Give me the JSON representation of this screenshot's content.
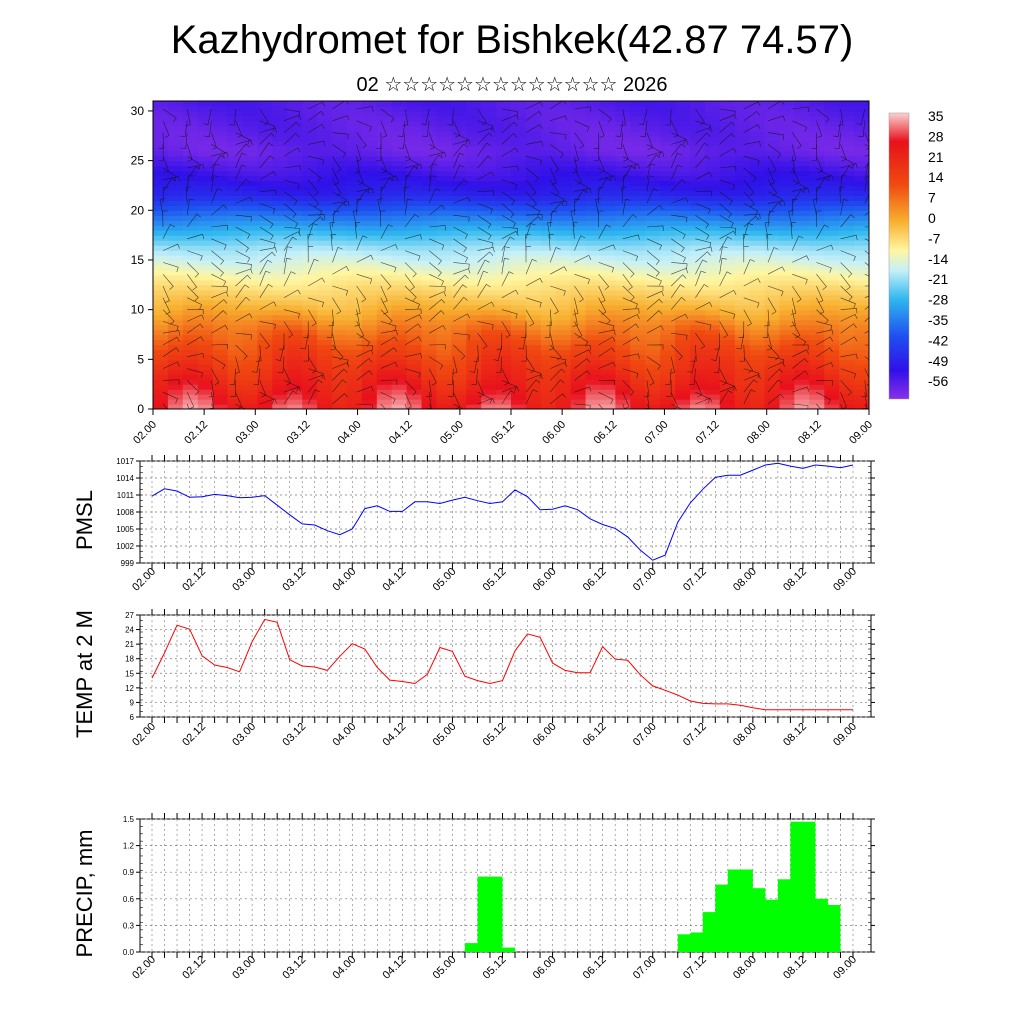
{
  "title": "Kazhydromet for Bishkek(42.87 74.57)",
  "subtitle": {
    "day": "02",
    "month_stars": "☆☆☆☆☆☆☆☆☆☆☆☆☆",
    "year": "2026"
  },
  "time_labels": [
    "02.00",
    "02.12",
    "03.00",
    "03.12",
    "04.00",
    "04.12",
    "05.00",
    "05.12",
    "06.00",
    "06.12",
    "07.00",
    "07.12",
    "08.00",
    "08.12",
    "09.00"
  ],
  "colors": {
    "pmsl_line": "#0000ff",
    "temp_line": "#ff0000",
    "precip_bar": "#00ff00"
  },
  "chart_data": [
    {
      "type": "heatmap",
      "name": "cross-section",
      "ylabel_ticks": [
        "0",
        "5",
        "10",
        "15",
        "20",
        "25",
        "30"
      ],
      "ylim": [
        0,
        31
      ],
      "colorbar_labels": [
        "35",
        "28",
        "21",
        "14",
        "7",
        "0",
        "-7",
        "-14",
        "-21",
        "-28",
        "-35",
        "-42",
        "-49",
        "-56"
      ],
      "colorbar_range": [
        -60,
        39
      ],
      "profile_levels": [
        0,
        4,
        8,
        12,
        16,
        19,
        21.5,
        23,
        26,
        31
      ],
      "profile_values": [
        30,
        20,
        10,
        -2,
        -14,
        -32,
        -48,
        -52,
        -57,
        -55
      ]
    },
    {
      "type": "line",
      "name": "PMSL",
      "ylabel": "PMSL",
      "y_ticks": [
        "999",
        "1002",
        "1005",
        "1008",
        "1011",
        "1014",
        "1017"
      ],
      "ylim": [
        999,
        1017
      ],
      "x": [
        0,
        1,
        2,
        3,
        4,
        5,
        6,
        7,
        8,
        9,
        10,
        11,
        12,
        13,
        14,
        15,
        16,
        17,
        18,
        19,
        20,
        21,
        22,
        23,
        24,
        25,
        26,
        27,
        28,
        29,
        30,
        31,
        32,
        33,
        34,
        35,
        36,
        37,
        38,
        39,
        40,
        41,
        42,
        43,
        44,
        45,
        46,
        47,
        48,
        49,
        50,
        51,
        52,
        53,
        54,
        55,
        56
      ],
      "values": [
        1010.8,
        1012.1,
        1011.7,
        1010.6,
        1010.7,
        1011.1,
        1010.9,
        1010.5,
        1010.6,
        1010.9,
        1009.2,
        1007.5,
        1005.9,
        1005.7,
        1004.7,
        1004.0,
        1005.0,
        1008.6,
        1009.1,
        1008.1,
        1008.1,
        1009.8,
        1009.8,
        1009.5,
        1010.1,
        1010.6,
        1010.0,
        1009.5,
        1009.8,
        1011.9,
        1010.7,
        1008.4,
        1008.5,
        1009.1,
        1008.4,
        1006.8,
        1005.8,
        1005.1,
        1003.6,
        1001.3,
        999.5,
        1000.4,
        1006.2,
        1009.6,
        1012.0,
        1014.1,
        1014.5,
        1014.5,
        1015.4,
        1016.3,
        1016.6,
        1016.1,
        1015.7,
        1016.3,
        1016.1,
        1015.8,
        1016.3
      ]
    },
    {
      "type": "line",
      "name": "TEMP at 2 M",
      "ylabel": "TEMP at 2 M",
      "y_ticks": [
        "6",
        "9",
        "12",
        "15",
        "18",
        "21",
        "24",
        "27"
      ],
      "ylim": [
        6,
        27
      ],
      "x": [
        0,
        1,
        2,
        3,
        4,
        5,
        6,
        7,
        8,
        9,
        10,
        11,
        12,
        13,
        14,
        15,
        16,
        17,
        18,
        19,
        20,
        21,
        22,
        23,
        24,
        25,
        26,
        27,
        28,
        29,
        30,
        31,
        32,
        33,
        34,
        35,
        36,
        37,
        38,
        39,
        40,
        41,
        42,
        43,
        44,
        45,
        46,
        47,
        48,
        49,
        50,
        51,
        52,
        53,
        54,
        55,
        56
      ],
      "values": [
        14.0,
        19.2,
        24.9,
        24.1,
        18.6,
        16.7,
        16.2,
        15.3,
        21.5,
        26.1,
        25.5,
        17.8,
        16.5,
        16.3,
        15.6,
        18.5,
        21.1,
        20.0,
        16.2,
        13.6,
        13.3,
        12.9,
        14.8,
        20.3,
        19.5,
        14.4,
        13.5,
        12.9,
        13.5,
        19.6,
        23.1,
        22.4,
        17.1,
        15.6,
        15.1,
        15.1,
        20.5,
        17.9,
        17.7,
        14.7,
        12.4,
        11.5,
        10.5,
        9.3,
        8.8,
        8.7,
        8.7,
        8.4,
        7.9,
        7.5,
        7.5,
        7.5,
        7.5,
        7.5,
        7.5,
        7.5,
        7.5
      ]
    },
    {
      "type": "bar",
      "name": "PRECIP, mm",
      "ylabel": "PRECIP, mm",
      "y_ticks": [
        "0.0",
        "0.3",
        "0.6",
        "0.9",
        "1.2",
        "1.5"
      ],
      "ylim": [
        0,
        1.5
      ],
      "bar_start": 26,
      "values": [
        0.1,
        0.85,
        0.05,
        0,
        0,
        0,
        0,
        0,
        0,
        0,
        0,
        0,
        0,
        0,
        0,
        0,
        0,
        0.2,
        0.22,
        0.45,
        0.76,
        0.93,
        0.72,
        0.59,
        0.5,
        0.82,
        1.47,
        0.6,
        0.53
      ]
    }
  ]
}
